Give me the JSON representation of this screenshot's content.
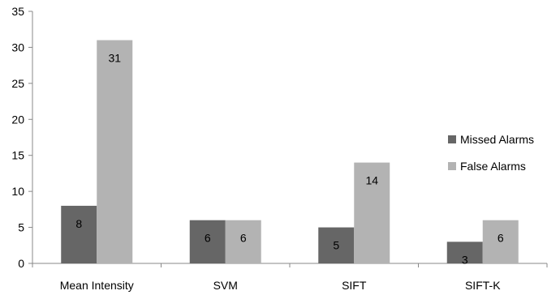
{
  "chart_data": {
    "type": "bar",
    "categories": [
      "Mean Intensity",
      "SVM",
      "SIFT",
      "SIFT-K"
    ],
    "series": [
      {
        "name": "Missed Alarms",
        "values": [
          8,
          6,
          5,
          3
        ],
        "color": "#666666"
      },
      {
        "name": "False Alarms",
        "values": [
          31,
          6,
          14,
          6
        ],
        "color": "#b3b3b3"
      }
    ],
    "title": "",
    "xlabel": "",
    "ylabel": "",
    "ylim": [
      0,
      35
    ],
    "yticks": [
      "0",
      "5",
      "10",
      "15",
      "20",
      "25",
      "30",
      "35"
    ],
    "grid": false,
    "legend_position": "right",
    "data_labels": true
  }
}
